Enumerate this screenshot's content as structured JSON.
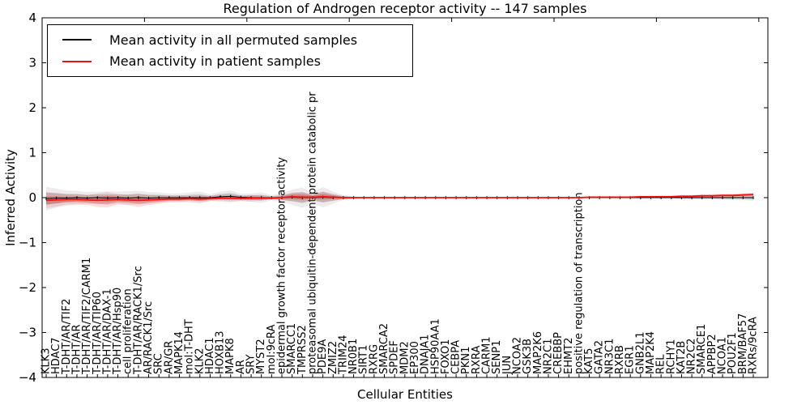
{
  "figure": {
    "title": "Regulation of Androgen receptor activity -- 147 samples"
  },
  "legend": {
    "position": "upper left",
    "entries": [
      {
        "label": "Mean activity in all permuted samples",
        "color": "#000000"
      },
      {
        "label": "Mean activity in patient samples",
        "color": "#ee1111"
      }
    ]
  },
  "chart_data": {
    "type": "line",
    "title": "Regulation of Androgen receptor activity -- 147 samples",
    "xlabel": "Cellular Entities",
    "ylabel": "Inferred Activity",
    "ylim": [
      -4,
      4
    ],
    "yticks": [
      4,
      3,
      2,
      1,
      0,
      -1,
      -2,
      -3,
      -4
    ],
    "grid": false,
    "legend_position": "upper left",
    "sample_count_in_title": 147,
    "categories": [
      "KLK3",
      "HDAC7",
      "T-DHT/AR/TIF2",
      "T-DHT/AR",
      "T-DHT/AR/TIF2/CARM1",
      "T-DHT/AR/TIP60",
      "T-DHT/AR/DAX-1",
      "T-DHT/AR/Hsp90",
      "cell proliferation",
      "T-DHT/AR/RACK1/Src",
      "AR/RACK1/Src",
      "SRC",
      "AR/GR",
      "MAPK14",
      "mol:T-DHT",
      "KLK2",
      "HDAC1",
      "HOXB13",
      "MAPK8",
      "AR",
      "SRY",
      "MYST2",
      "mol:9cRA",
      "epidermal growth factor receptor activity",
      "SMARCC1",
      "TMPRSS2",
      "proteasomal ubiquitin-dependent protein catabolic pr",
      "PDE9A",
      "ZMIZ2",
      "TRIM24",
      "NR0B1",
      "SIRT1",
      "RXRG",
      "SMARCA2",
      "SPDEF",
      "MDM2",
      "EP300",
      "DNAJA1",
      "HSP90AA1",
      "FOXO1",
      "CEBPA",
      "PKN1",
      "RXRA",
      "CARM1",
      "SENP1",
      "JUN",
      "NCOA2",
      "GSK3B",
      "MAP2K6",
      "NR2C1",
      "CREBBP",
      "EHMT2",
      "positive regulation of transcription",
      "KAT5",
      "GATA2",
      "NR3C1",
      "RXRB",
      "EGR1",
      "GNB2L1",
      "MAP2K4",
      "REL",
      "RCHY1",
      "KAT2B",
      "NR2C2",
      "SMARCE1",
      "APPBP2",
      "NCOA1",
      "POU2F1",
      "BRM/BAF57",
      "RXRs/9cRA"
    ],
    "series": [
      {
        "name": "Mean activity in all permuted samples",
        "color": "#000000",
        "band_color": "#6e6e6e",
        "values": [
          -0.02,
          -0.01,
          -0.01,
          0.0,
          -0.01,
          0.0,
          -0.01,
          0.0,
          -0.01,
          0.0,
          -0.01,
          0.0,
          0.0,
          0.0,
          0.0,
          0.0,
          0.0,
          0.02,
          0.03,
          0.01,
          0.0,
          0.0,
          0.0,
          0.0,
          0.01,
          0.0,
          0.0,
          0.01,
          0.0,
          0.0,
          0.0,
          0.0,
          0.0,
          0.0,
          0.0,
          0.0,
          0.0,
          0.0,
          0.0,
          0.0,
          0.0,
          0.0,
          0.0,
          0.0,
          0.0,
          0.0,
          0.0,
          0.0,
          0.0,
          0.0,
          0.0,
          0.0,
          0.0,
          0.0,
          0.0,
          0.0,
          0.0,
          0.0,
          0.0,
          0.0,
          0.0,
          0.0,
          0.0,
          0.0,
          0.0,
          0.0,
          0.0,
          0.0,
          0.0,
          0.0
        ],
        "band_halfwidth": [
          0.14,
          0.11,
          0.09,
          0.08,
          0.07,
          0.07,
          0.08,
          0.07,
          0.08,
          0.08,
          0.07,
          0.06,
          0.05,
          0.05,
          0.06,
          0.07,
          0.04,
          0.06,
          0.07,
          0.04,
          0.05,
          0.06,
          0.03,
          0.05,
          0.09,
          0.12,
          0.06,
          0.12,
          0.07,
          0.03,
          0.015,
          0.01,
          0.01,
          0.01,
          0.01,
          0.01,
          0.01,
          0.01,
          0.01,
          0.01,
          0.01,
          0.01,
          0.01,
          0.01,
          0.01,
          0.01,
          0.01,
          0.01,
          0.01,
          0.01,
          0.01,
          0.01,
          0.01,
          0.01,
          0.01,
          0.01,
          0.01,
          0.01,
          0.01,
          0.01,
          0.01,
          0.01,
          0.015,
          0.02,
          0.02,
          0.02,
          0.025,
          0.03,
          0.03,
          0.04
        ]
      },
      {
        "name": "Mean activity in patient samples",
        "color": "#ee1111",
        "band_color": "#e12b2b",
        "values": [
          -0.06,
          -0.05,
          -0.04,
          -0.04,
          -0.05,
          -0.06,
          -0.05,
          -0.04,
          -0.05,
          -0.06,
          -0.05,
          -0.04,
          -0.03,
          -0.03,
          -0.02,
          -0.03,
          -0.02,
          -0.01,
          -0.01,
          -0.02,
          -0.01,
          -0.01,
          -0.01,
          0.0,
          0.02,
          0.01,
          0.01,
          0.02,
          0.01,
          0.0,
          0.0,
          0.0,
          0.0,
          0.0,
          0.0,
          0.0,
          0.0,
          0.0,
          0.0,
          0.0,
          0.0,
          0.0,
          0.0,
          0.0,
          0.0,
          0.0,
          0.0,
          0.0,
          0.0,
          0.0,
          0.0,
          0.0,
          0.0,
          0.01,
          0.01,
          0.01,
          0.01,
          0.01,
          0.02,
          0.02,
          0.02,
          0.02,
          0.03,
          0.03,
          0.04,
          0.04,
          0.05,
          0.05,
          0.06,
          0.07
        ],
        "band_halfwidth": [
          0.09,
          0.08,
          0.06,
          0.06,
          0.06,
          0.08,
          0.09,
          0.06,
          0.06,
          0.08,
          0.06,
          0.05,
          0.04,
          0.04,
          0.03,
          0.04,
          0.03,
          0.03,
          0.04,
          0.03,
          0.04,
          0.03,
          0.02,
          0.03,
          0.05,
          0.06,
          0.03,
          0.06,
          0.04,
          0.02,
          0.01,
          0.01,
          0.01,
          0.01,
          0.01,
          0.01,
          0.01,
          0.01,
          0.01,
          0.01,
          0.01,
          0.01,
          0.01,
          0.01,
          0.01,
          0.01,
          0.01,
          0.01,
          0.01,
          0.01,
          0.01,
          0.01,
          0.01,
          0.01,
          0.01,
          0.01,
          0.01,
          0.01,
          0.01,
          0.01,
          0.015,
          0.015,
          0.015,
          0.015,
          0.02,
          0.02,
          0.02,
          0.02,
          0.02,
          0.02
        ]
      }
    ]
  }
}
